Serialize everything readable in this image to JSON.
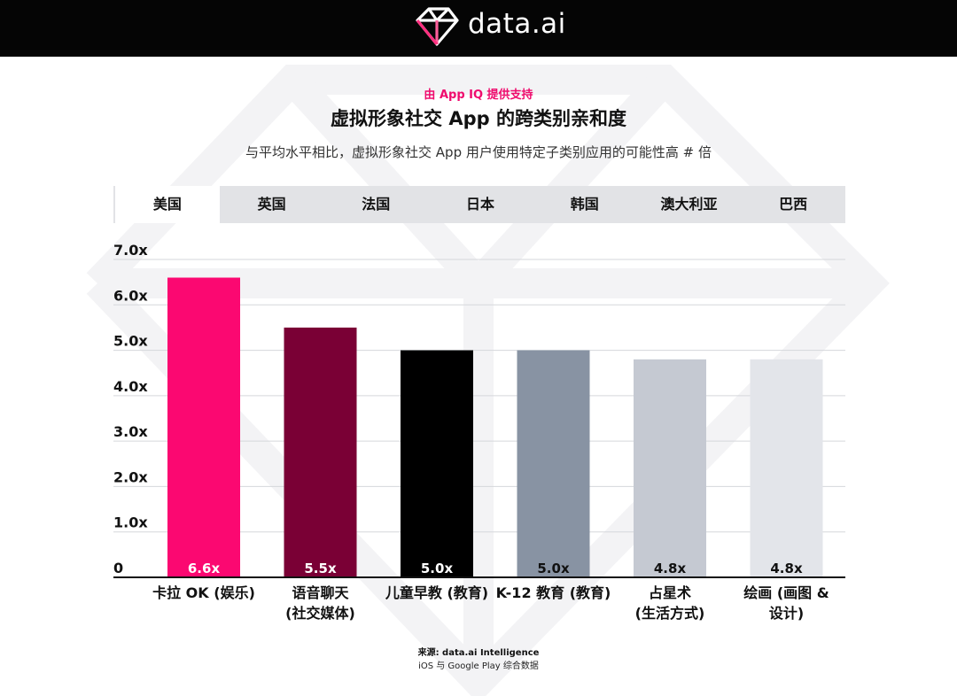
{
  "header": {
    "logo_text": "data.ai"
  },
  "eyebrow": "由 App IQ 提供支持",
  "title": "虚拟形象社交 App 的跨类别亲和度",
  "subtitle": "与平均水平相比，虚拟形象社交 App 用户使用特定子类别应用的可能性高 # 倍",
  "tabs": [
    {
      "label": "美国",
      "active": true
    },
    {
      "label": "英国",
      "active": false
    },
    {
      "label": "法国",
      "active": false
    },
    {
      "label": "日本",
      "active": false
    },
    {
      "label": "韩国",
      "active": false
    },
    {
      "label": "澳大利亚",
      "active": false
    },
    {
      "label": "巴西",
      "active": false
    }
  ],
  "chart_data": {
    "type": "bar",
    "title": "虚拟形象社交 App 的跨类别亲和度",
    "xlabel": "",
    "ylabel": "",
    "ylim": [
      0,
      7
    ],
    "grid": true,
    "y_ticks": [
      {
        "value": 0,
        "label": "0"
      },
      {
        "value": 1,
        "label": "1.0x"
      },
      {
        "value": 2,
        "label": "2.0x"
      },
      {
        "value": 3,
        "label": "3.0x"
      },
      {
        "value": 4,
        "label": "4.0x"
      },
      {
        "value": 5,
        "label": "5.0x"
      },
      {
        "value": 6,
        "label": "6.0x"
      },
      {
        "value": 7,
        "label": "7.0x"
      }
    ],
    "categories": [
      [
        "卡拉 OK (娱乐)"
      ],
      [
        "语音聊天",
        "(社交媒体)"
      ],
      [
        "儿童早教 (教育)"
      ],
      [
        "K-12 教育 (教育)"
      ],
      [
        "占星术",
        "(生活方式)"
      ],
      [
        "绘画 (画图 &",
        "设计)"
      ]
    ],
    "values": [
      6.6,
      5.5,
      5.0,
      5.0,
      4.8,
      4.8
    ],
    "value_labels": [
      "6.6x",
      "5.5x",
      "5.0x",
      "5.0x",
      "4.8x",
      "4.8x"
    ],
    "colors": [
      "#fb0871",
      "#7a0035",
      "#000000",
      "#8893a3",
      "#c5c9d2",
      "#e3e5ea"
    ],
    "label_colors": [
      "#ffffff",
      "#ffffff",
      "#ffffff",
      "#111111",
      "#111111",
      "#111111"
    ]
  },
  "source": {
    "line1": "来源: data.ai Intelligence",
    "line2": "iOS 与 Google Play 综合数据"
  }
}
